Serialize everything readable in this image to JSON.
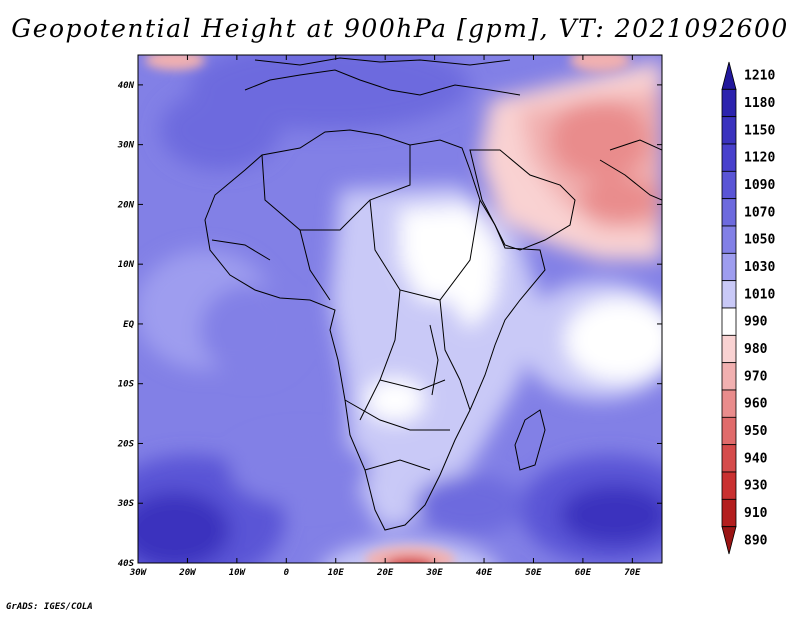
{
  "title": "Geopotential Height at 900hPa [gpm], VT: 2021092600",
  "credit": "GrADS: IGES/COLA",
  "map": {
    "lon_range": [
      -30,
      76
    ],
    "lat_range": [
      -40,
      45
    ],
    "x_ticks": [
      "30W",
      "20W",
      "10W",
      "0",
      "10E",
      "20E",
      "30E",
      "40E",
      "50E",
      "60E",
      "70E"
    ],
    "x_tick_values": [
      -30,
      -20,
      -10,
      0,
      10,
      20,
      30,
      40,
      50,
      60,
      70
    ],
    "y_ticks": [
      "40N",
      "30N",
      "20N",
      "10N",
      "EQ",
      "10S",
      "20S",
      "30S",
      "40S"
    ],
    "y_tick_values": [
      40,
      30,
      20,
      10,
      0,
      -10,
      -20,
      -30,
      -40
    ]
  },
  "colorbar": {
    "labels": [
      "1210",
      "1180",
      "1150",
      "1120",
      "1090",
      "1070",
      "1050",
      "1030",
      "1010",
      "990",
      "980",
      "970",
      "960",
      "950",
      "940",
      "930",
      "910",
      "890"
    ],
    "colors": [
      "#22189c",
      "#2c23ae",
      "#3a32be",
      "#4840cc",
      "#5a55d6",
      "#6d6ade",
      "#8280e6",
      "#9e9def",
      "#c9c9f7",
      "#ffffff",
      "#f9d2d2",
      "#f1b0b0",
      "#e98c8c",
      "#e06b6b",
      "#d54b4b",
      "#c93030",
      "#b31e1e",
      "#9a1414"
    ]
  }
}
